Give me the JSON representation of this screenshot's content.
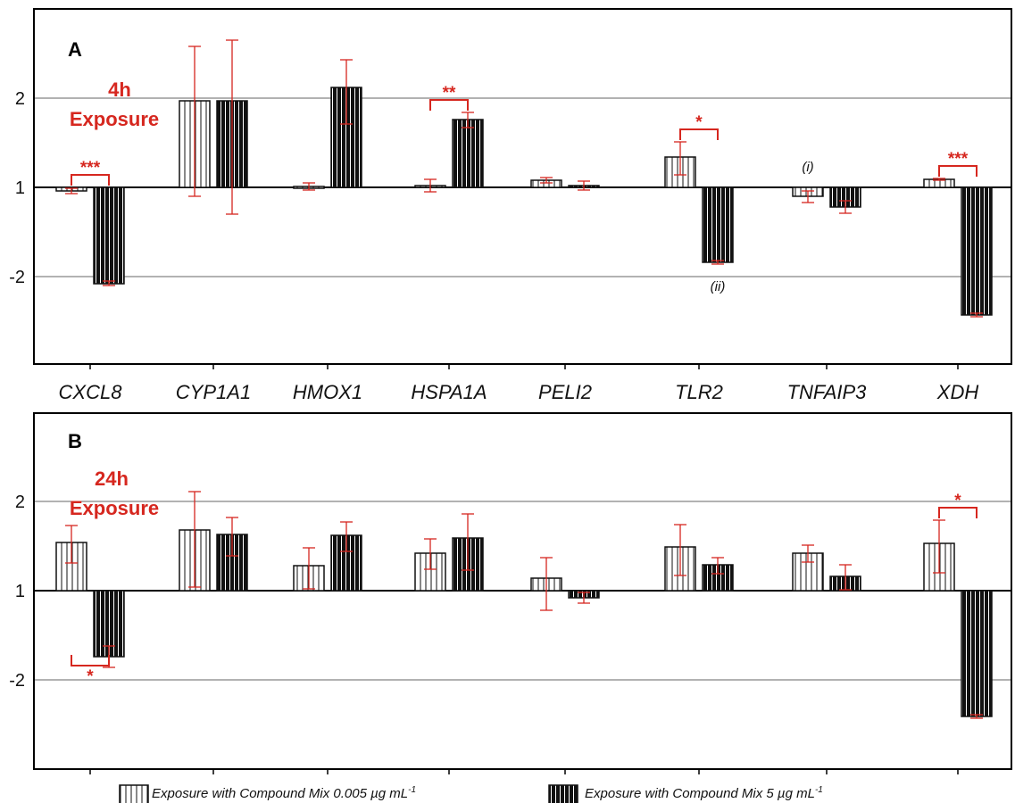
{
  "chart_data": [
    {
      "panel": "A",
      "type": "bar",
      "title_lines": [
        "4h",
        "Exposure"
      ],
      "yticks": [
        "2",
        "1",
        "-2"
      ],
      "categories": [
        "CXCL8",
        "CYP1A1",
        "HMOX1",
        "HSPA1A",
        "PELI2",
        "TLR2",
        "TNFAIP3",
        "XDH"
      ],
      "series": [
        {
          "name": "Exposure with Compound Mix 0.005 µg mL⁻¹",
          "values": [
            -1.04,
            1.97,
            1.01,
            1.02,
            1.08,
            1.34,
            -1.1,
            1.09
          ],
          "err_low": [
            -1.07,
            -1.1,
            -1.03,
            -1.05,
            1.05,
            1.14,
            -1.17,
            1.08
          ],
          "err_high": [
            -1.01,
            2.58,
            1.05,
            1.09,
            1.11,
            1.51,
            -1.04,
            1.1
          ]
        },
        {
          "name": "Exposure with Compound Mix 5 µg mL⁻¹",
          "values": [
            -2.08,
            1.97,
            2.12,
            1.76,
            1.02,
            -1.84,
            -1.22,
            -2.43
          ],
          "err_low": [
            -2.05,
            -1.3,
            1.71,
            1.67,
            -1.03,
            -1.82,
            -1.29,
            -2.41
          ],
          "err_high": [
            -2.1,
            2.65,
            2.43,
            1.84,
            1.07,
            -1.86,
            -1.15,
            -2.45
          ]
        }
      ],
      "significance": [
        {
          "category": "CXCL8",
          "label": "***"
        },
        {
          "category": "HSPA1A",
          "label": "**"
        },
        {
          "category": "TLR2",
          "label": "*"
        },
        {
          "category": "XDH",
          "label": "***"
        }
      ],
      "annotations": [
        {
          "category": "TNFAIP3",
          "series": 0,
          "text": "(i)"
        },
        {
          "category": "TLR2",
          "series": 1,
          "text": "(ii)"
        }
      ],
      "grid": true
    },
    {
      "panel": "B",
      "type": "bar",
      "title_lines": [
        "24h",
        "Exposure"
      ],
      "yticks": [
        "2",
        "1",
        "-2"
      ],
      "categories": [
        "CXCL8",
        "CYP1A1",
        "HMOX1",
        "HSPA1A",
        "PELI2",
        "TLR2",
        "TNFAIP3",
        "XDH"
      ],
      "series": [
        {
          "name": "Exposure with Compound Mix 0.005 µg mL⁻¹",
          "values": [
            1.54,
            1.68,
            1.28,
            1.42,
            1.14,
            1.49,
            1.42,
            1.53
          ],
          "err_low": [
            1.31,
            1.04,
            1.02,
            1.24,
            -1.22,
            1.17,
            1.32,
            1.2
          ],
          "err_high": [
            1.73,
            2.11,
            1.48,
            1.58,
            1.37,
            1.74,
            1.51,
            1.79
          ]
        },
        {
          "name": "Exposure with Compound Mix 5 µg mL⁻¹",
          "values": [
            -1.74,
            1.63,
            1.62,
            1.59,
            -1.08,
            1.29,
            1.16,
            -2.41
          ],
          "err_low": [
            -1.62,
            1.39,
            1.44,
            1.23,
            -1.14,
            1.19,
            1.01,
            -2.39
          ],
          "err_high": [
            -1.86,
            1.82,
            1.77,
            1.86,
            -1.02,
            1.37,
            1.29,
            -2.43
          ]
        }
      ],
      "significance": [
        {
          "category": "CXCL8",
          "label": "*",
          "position": "below"
        },
        {
          "category": "XDH",
          "label": "*"
        }
      ],
      "grid": true
    }
  ],
  "legend": [
    {
      "label": "Exposure with Compound Mix 0.005 µg mL",
      "sup": "-1",
      "pattern": "open-hatched"
    },
    {
      "label": "Exposure with Compound Mix 5 µg mL",
      "sup": "-1",
      "pattern": "solid-hatched"
    }
  ],
  "colors": {
    "axis": "#000000",
    "bar_stroke": "#111111",
    "error": "#d6271f",
    "significance": "#d6271f",
    "grid": "#666666"
  }
}
